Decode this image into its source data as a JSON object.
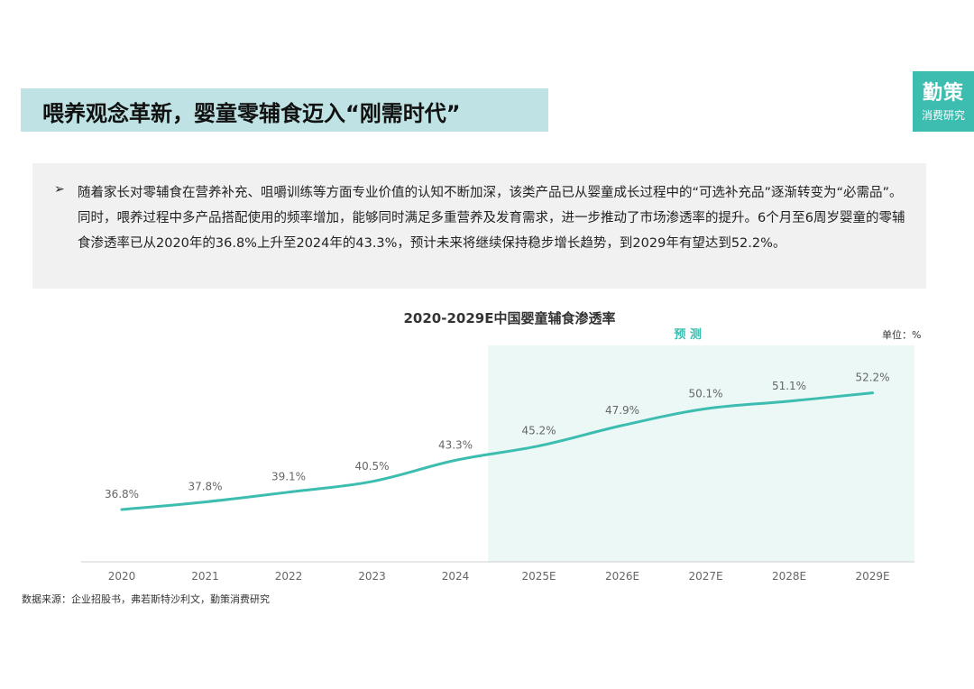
{
  "header": {
    "title": "喂养观念革新，婴童零辅食迈入“刚需时代”"
  },
  "logo": {
    "line1": "勤策",
    "line2": "消费研究"
  },
  "body": {
    "bullet": "➢",
    "paragraph": "随着家长对零辅食在营养补充、咀嚼训练等方面专业价值的认知不断加深，该类产品已从婴童成长过程中的“可选补充品”逐渐转变为“必需品”。同时，喂养过程中多产品搭配使用的频率增加，能够同时满足多重营养及发育需求，进一步推动了市场渗透率的提升。6个月至6周岁婴童的零辅食渗透率已从2020年的36.8%上升至2024年的43.3%，预计未来将继续保持稳步增长趋势，到2029年有望达到52.2%。"
  },
  "chart_data": {
    "type": "line",
    "title": "2020-2029E中国婴童辅食渗透率",
    "unit_label": "单位：%",
    "forecast_label": "预 测",
    "forecast_start": "2025E",
    "categories": [
      "2020",
      "2021",
      "2022",
      "2023",
      "2024",
      "2025E",
      "2026E",
      "2027E",
      "2028E",
      "2029E"
    ],
    "series": [
      {
        "values": [
          36.8,
          37.8,
          39.1,
          40.5,
          43.3,
          45.2,
          47.9,
          50.1,
          51.1,
          52.2
        ],
        "labels": [
          "36.8%",
          "37.8%",
          "39.1%",
          "40.5%",
          "43.3%",
          "45.2%",
          "47.9%",
          "50.1%",
          "51.1%",
          "52.2%"
        ]
      }
    ],
    "line_color": "#3dbdb0",
    "forecast_bg": "#ebf8f6",
    "grid": false
  },
  "source": "数据来源：企业招股书，弗若斯特沙利文，勤策消费研究"
}
